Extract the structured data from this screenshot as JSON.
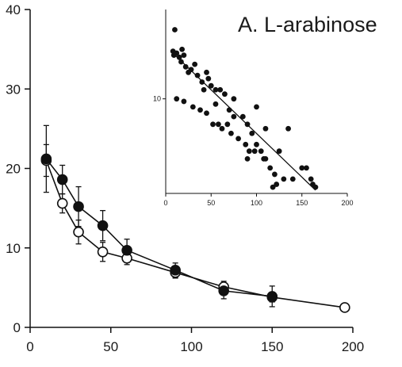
{
  "chart_data": [
    {
      "type": "line",
      "title": "A. L-arabinose",
      "xlim": [
        0,
        200
      ],
      "ylim": [
        0,
        40
      ],
      "xticks": [
        0,
        50,
        100,
        150,
        200
      ],
      "yticks": [
        0,
        10,
        20,
        30,
        40
      ],
      "grid": false,
      "series": [
        {
          "marker": "filled-circle",
          "points": [
            {
              "x": 10,
              "y": 21.2,
              "err": 4.2
            },
            {
              "x": 20,
              "y": 18.6,
              "err": 1.8
            },
            {
              "x": 30,
              "y": 15.2,
              "err": 2.5
            },
            {
              "x": 45,
              "y": 12.8,
              "err": 1.9
            },
            {
              "x": 60,
              "y": 9.7,
              "err": 1.4
            },
            {
              "x": 90,
              "y": 7.2,
              "err": 0.9
            },
            {
              "x": 120,
              "y": 4.6,
              "err": 1.0
            },
            {
              "x": 150,
              "y": 3.9,
              "err": 1.3
            }
          ]
        },
        {
          "marker": "open-circle",
          "points": [
            {
              "x": 10,
              "y": 21.0,
              "err": 2.0
            },
            {
              "x": 20,
              "y": 15.6,
              "err": 1.2
            },
            {
              "x": 30,
              "y": 12.0,
              "err": 1.5
            },
            {
              "x": 45,
              "y": 9.5,
              "err": 1.2
            },
            {
              "x": 60,
              "y": 8.7,
              "err": 0.8
            },
            {
              "x": 90,
              "y": 6.9,
              "err": 0.7
            },
            {
              "x": 120,
              "y": 5.1,
              "err": 0.7
            },
            {
              "x": 150,
              "y": 3.8,
              "err": 0.6
            },
            {
              "x": 195,
              "y": 2.5,
              "err": 0.3
            }
          ]
        }
      ]
    },
    {
      "type": "scatter",
      "xlim": [
        0,
        200
      ],
      "ylog": true,
      "ylim": [
        1.5,
        60
      ],
      "xticks": [
        0,
        50,
        100,
        150,
        200
      ],
      "yticks": [
        10
      ],
      "points": [
        [
          10,
          40
        ],
        [
          8,
          26
        ],
        [
          9,
          24
        ],
        [
          12,
          25
        ],
        [
          15,
          23
        ],
        [
          18,
          27
        ],
        [
          20,
          24
        ],
        [
          17,
          21
        ],
        [
          22,
          19
        ],
        [
          25,
          17
        ],
        [
          28,
          18
        ],
        [
          32,
          20
        ],
        [
          35,
          16
        ],
        [
          40,
          14
        ],
        [
          45,
          17
        ],
        [
          47,
          15
        ],
        [
          50,
          13
        ],
        [
          55,
          12
        ],
        [
          60,
          12
        ],
        [
          65,
          11
        ],
        [
          70,
          8
        ],
        [
          75,
          7
        ],
        [
          85,
          7
        ],
        [
          90,
          6
        ],
        [
          95,
          5
        ],
        [
          100,
          4
        ],
        [
          105,
          3.5
        ],
        [
          110,
          3
        ],
        [
          120,
          2.2
        ],
        [
          130,
          2
        ],
        [
          140,
          2
        ],
        [
          155,
          2.5
        ],
        [
          160,
          2
        ],
        [
          165,
          1.7
        ],
        [
          12,
          10
        ],
        [
          20,
          9.5
        ],
        [
          30,
          8.5
        ],
        [
          38,
          8
        ],
        [
          45,
          7.5
        ],
        [
          52,
          6
        ],
        [
          58,
          6
        ],
        [
          62,
          5.5
        ],
        [
          68,
          6
        ],
        [
          72,
          5
        ],
        [
          80,
          4.5
        ],
        [
          88,
          4
        ],
        [
          92,
          3.5
        ],
        [
          98,
          3.5
        ],
        [
          108,
          3
        ],
        [
          115,
          2.5
        ],
        [
          122,
          1.8
        ],
        [
          100,
          8.5
        ],
        [
          110,
          5.5
        ],
        [
          135,
          5.5
        ],
        [
          150,
          2.5
        ],
        [
          162,
          1.8
        ],
        [
          55,
          9
        ],
        [
          75,
          10
        ],
        [
          90,
          3
        ],
        [
          118,
          1.7
        ],
        [
          125,
          3.5
        ],
        [
          42,
          12
        ]
      ],
      "fit_line": [
        [
          8,
          25
        ],
        [
          165,
          1.6
        ]
      ]
    }
  ]
}
